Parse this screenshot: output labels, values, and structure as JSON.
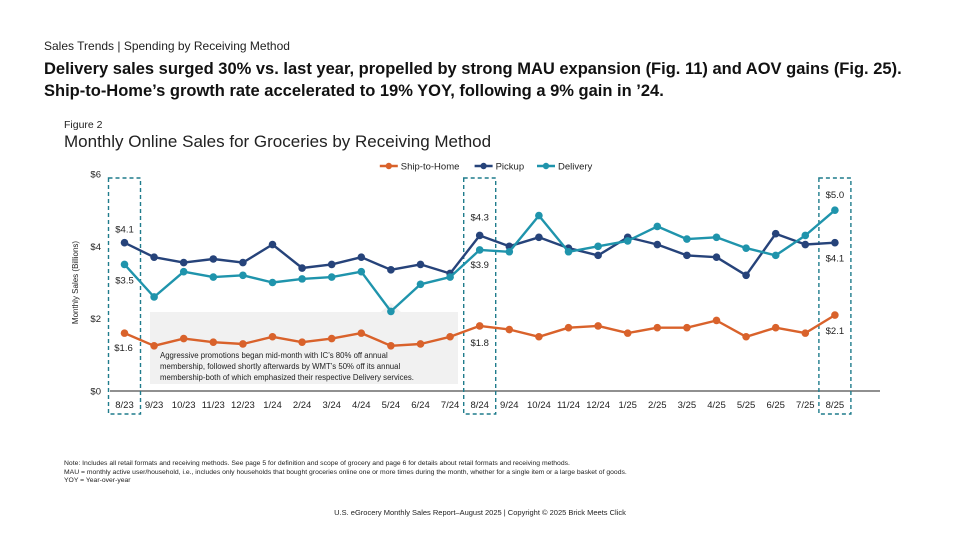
{
  "header": {
    "section": "Sales Trends | Spending by Receiving Method",
    "headline_line1": "Delivery sales surged 30% vs. last year, propelled by strong MAU expansion (Fig. 11) and AOV gains (Fig. 25).",
    "headline_line2": "Ship-to-Home’s growth rate accelerated to 19% YOY, following a 9% gain in ’24."
  },
  "figure": {
    "label": "Figure 2",
    "title": "Monthly Online Sales for Groceries by Receiving Method"
  },
  "chart_data": {
    "type": "line",
    "title": "Monthly Online Sales for Groceries by Receiving Method",
    "ylabel": "Monthly Sales (Billions)",
    "xlabel": "",
    "ylim": [
      0,
      6
    ],
    "y_ticks": [
      0,
      2,
      4,
      6
    ],
    "y_tick_labels": [
      "$0",
      "$2",
      "$4",
      "$6"
    ],
    "grid": false,
    "legend_position": "top-center",
    "categories": [
      "8/23",
      "9/23",
      "10/23",
      "11/23",
      "12/23",
      "1/24",
      "2/24",
      "3/24",
      "4/24",
      "5/24",
      "6/24",
      "7/24",
      "8/24",
      "9/24",
      "10/24",
      "11/24",
      "12/24",
      "1/25",
      "2/25",
      "3/25",
      "4/25",
      "5/25",
      "6/25",
      "7/25",
      "8/25"
    ],
    "series": [
      {
        "name": "Ship-to-Home",
        "color": "#d9622b",
        "values": [
          1.6,
          1.25,
          1.45,
          1.35,
          1.3,
          1.5,
          1.35,
          1.45,
          1.6,
          1.25,
          1.3,
          1.5,
          1.8,
          1.7,
          1.5,
          1.75,
          1.8,
          1.6,
          1.75,
          1.75,
          1.95,
          1.5,
          1.75,
          1.6,
          2.1
        ]
      },
      {
        "name": "Pickup",
        "color": "#26437a",
        "values": [
          4.1,
          3.7,
          3.55,
          3.65,
          3.55,
          4.05,
          3.4,
          3.5,
          3.7,
          3.35,
          3.5,
          3.25,
          4.3,
          4.0,
          4.25,
          3.95,
          3.75,
          4.25,
          4.05,
          3.75,
          3.7,
          3.2,
          4.35,
          4.05,
          4.1
        ]
      },
      {
        "name": "Delivery",
        "color": "#1f94ac",
        "values": [
          3.5,
          2.6,
          3.3,
          3.15,
          3.2,
          3.0,
          3.1,
          3.15,
          3.3,
          2.2,
          2.95,
          3.15,
          3.9,
          3.85,
          4.85,
          3.85,
          4.0,
          4.15,
          4.55,
          4.2,
          4.25,
          3.95,
          3.75,
          4.3,
          5.0
        ]
      }
    ],
    "data_labels": [
      {
        "series": "Pickup",
        "category": "8/23",
        "text": "$4.1"
      },
      {
        "series": "Delivery",
        "category": "8/23",
        "text": "$3.5"
      },
      {
        "series": "Ship-to-Home",
        "category": "8/23",
        "text": "$1.6"
      },
      {
        "series": "Pickup",
        "category": "8/24",
        "text": "$4.3"
      },
      {
        "series": "Delivery",
        "category": "8/24",
        "text": "$3.9"
      },
      {
        "series": "Ship-to-Home",
        "category": "8/24",
        "text": "$1.8"
      },
      {
        "series": "Delivery",
        "category": "8/25",
        "text": "$5.0"
      },
      {
        "series": "Pickup",
        "category": "8/25",
        "text": "$4.1"
      },
      {
        "series": "Ship-to-Home",
        "category": "8/25",
        "text": "$2.1"
      }
    ],
    "highlighted_categories": [
      "8/23",
      "8/24",
      "8/25"
    ],
    "annotation": {
      "category": "5/24",
      "text_lines": [
        "Aggressive promotions began mid-month with IC’s 80% off annual",
        "membership, followed shortly afterwards by WMT’s 50% off its annual",
        "membership-both of which emphasized their respective Delivery services."
      ]
    }
  },
  "notes": {
    "line1": "Note: Includes all retail formats and receiving methods. See page 5 for definition and scope of grocery and page 6 for details about retail formats and receiving methods.",
    "line2": "MAU = monthly active user/household, i.e., includes only households that bought groceries online one or more times during the month, whether for a single item or a large basket of goods.",
    "line3": "YOY = Year-over-year"
  },
  "footer": {
    "text": "U.S. eGrocery Monthly Sales Report–August 2025 | Copyright © 2025 Brick Meets Click"
  }
}
